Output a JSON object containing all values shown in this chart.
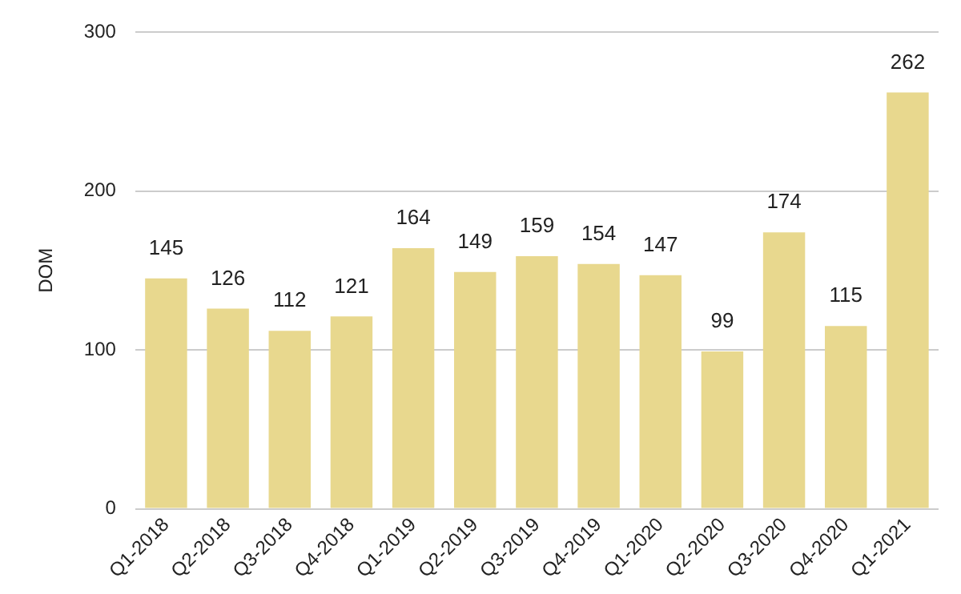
{
  "chart_data": {
    "type": "bar",
    "ylabel": "DOM",
    "categories": [
      "Q1-2018",
      "Q2-2018",
      "Q3-2018",
      "Q4-2018",
      "Q1-2019",
      "Q2-2019",
      "Q3-2019",
      "Q4-2019",
      "Q1-2020",
      "Q2-2020",
      "Q3-2020",
      "Q4-2020",
      "Q1-2021"
    ],
    "values": [
      145,
      126,
      112,
      121,
      164,
      149,
      159,
      154,
      147,
      99,
      174,
      115,
      262
    ],
    "color": "#e8d88e",
    "ylim": [
      0,
      300
    ],
    "yticks": [
      0,
      100,
      200,
      300
    ],
    "grid": "y",
    "legend": false,
    "data_labels": true
  }
}
